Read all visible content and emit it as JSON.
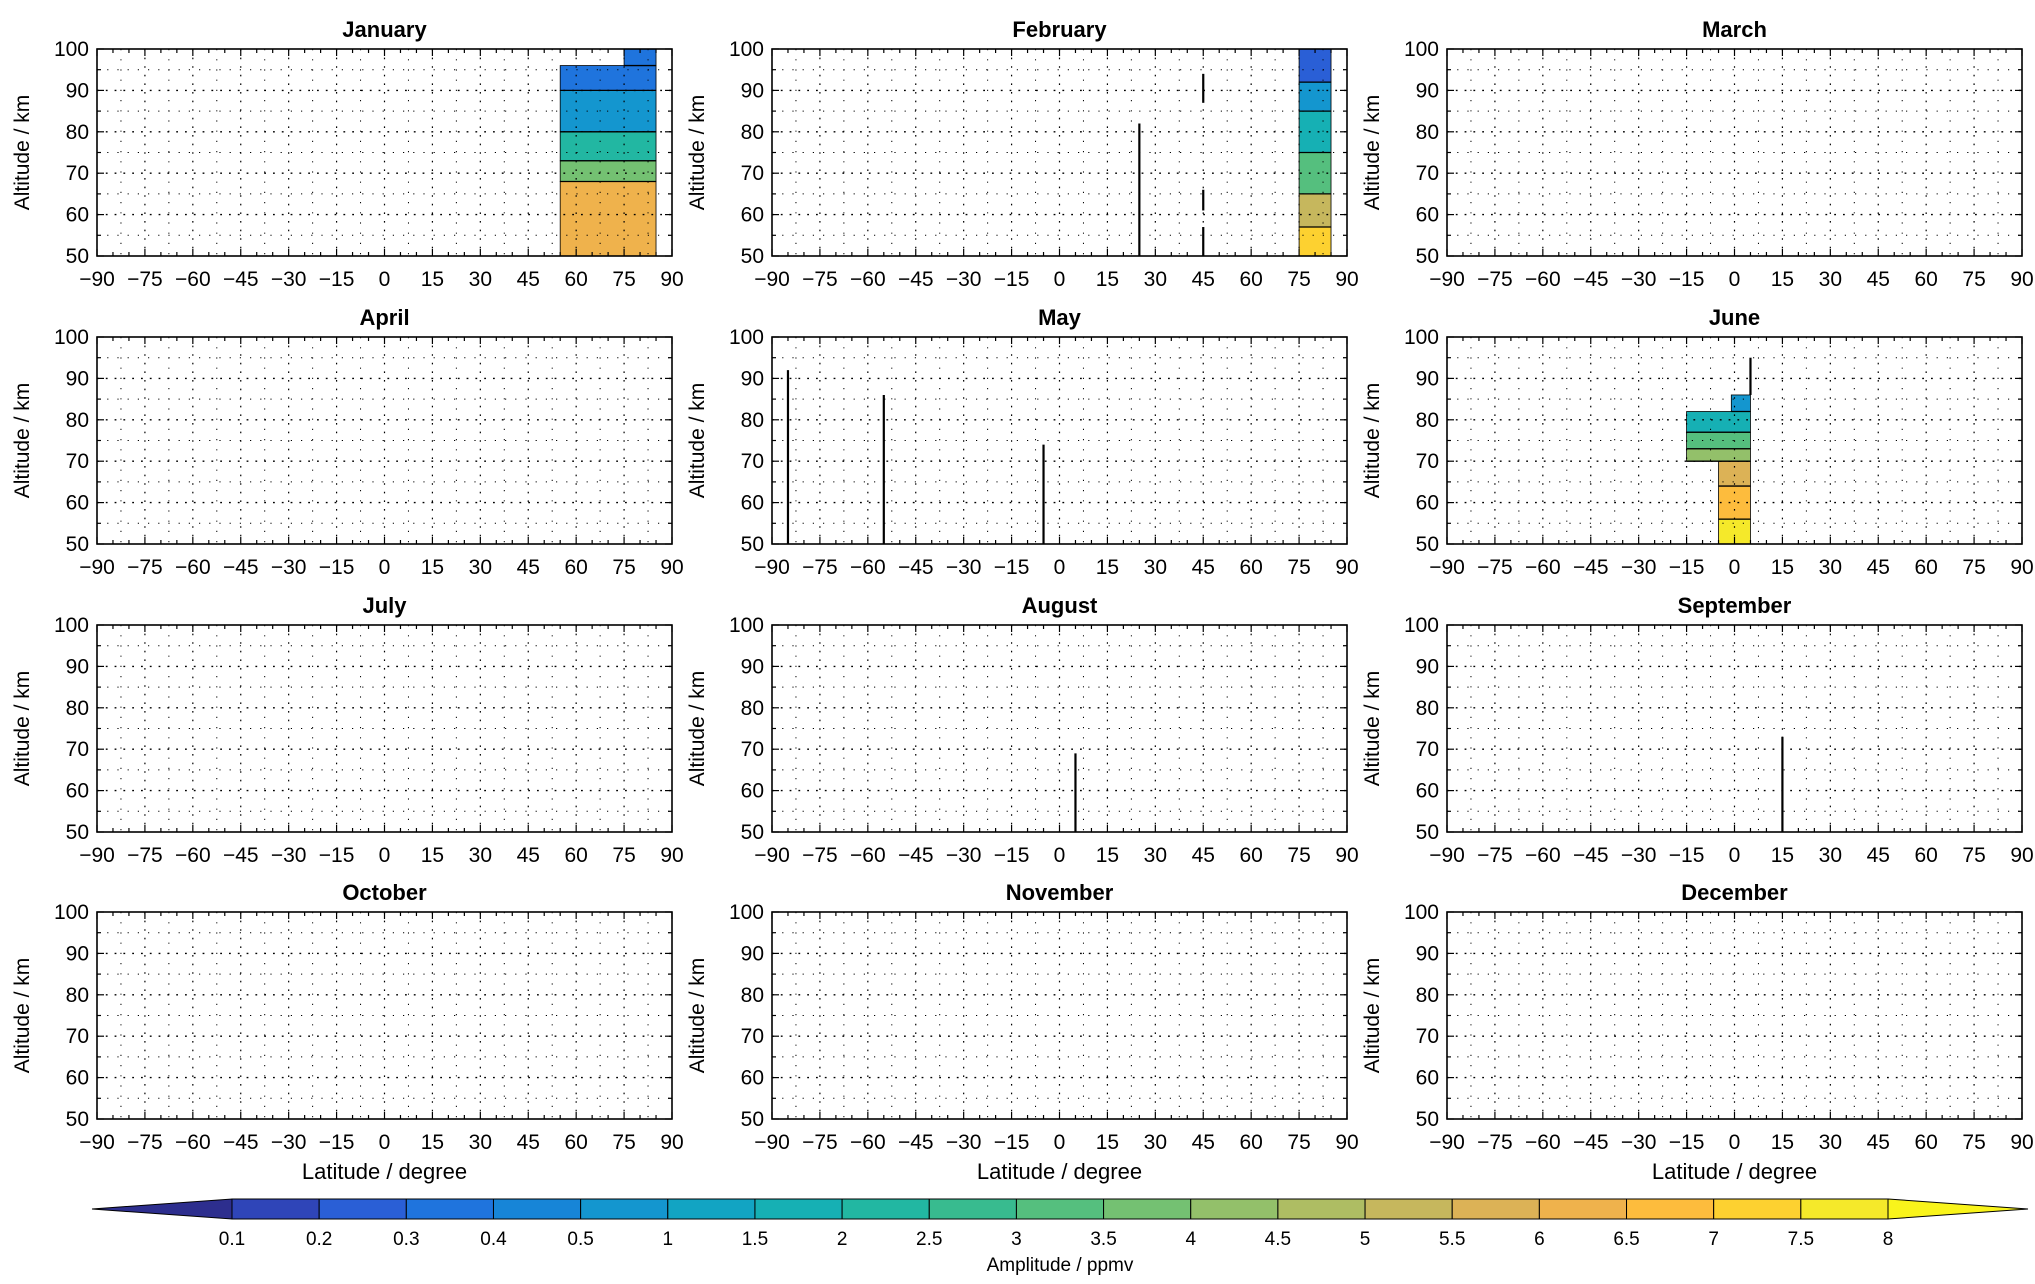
{
  "figure": {
    "colorbar": {
      "label": "Amplitude / ppmv",
      "levels": [
        0.1,
        0.2,
        0.3,
        0.4,
        0.5,
        1,
        1.5,
        2,
        2.5,
        3,
        3.5,
        4,
        4.5,
        5,
        5.5,
        6,
        6.5,
        7,
        7.5,
        8
      ],
      "tick_labels": [
        "0.1",
        "0.2",
        "0.3",
        "0.4",
        "0.5",
        "1",
        "1.5",
        "2",
        "2.5",
        "3",
        "3.5",
        "4",
        "4.5",
        "5",
        "5.5",
        "6",
        "6.5",
        "7",
        "7.5",
        "8"
      ],
      "colors": [
        "#2d2e8e",
        "#2f45b8",
        "#2a5fd6",
        "#1f74dd",
        "#1785d7",
        "#1496cf",
        "#12a4c3",
        "#16b0b4",
        "#22b7a2",
        "#38bb8f",
        "#55bf7e",
        "#74c172",
        "#93c06a",
        "#aebd63",
        "#c6b75d",
        "#dcb256",
        "#efb24c",
        "#fdbc3d",
        "#fdd130",
        "#f5e92a",
        "#f9f41b"
      ]
    }
  },
  "chart_data": [
    {
      "type": "heatmap",
      "title": "January",
      "xlabel": "",
      "ylabel": "Altitude / km",
      "xlim": [
        -90,
        90
      ],
      "ylim": [
        50,
        100
      ],
      "x_ticks": [
        "−90",
        "−75",
        "−60",
        "−45",
        "−30",
        "−15",
        "0",
        "15",
        "30",
        "45",
        "60",
        "75",
        "90"
      ],
      "y_ticks": [
        "50",
        "60",
        "70",
        "80",
        "90",
        "100"
      ],
      "regions": [
        {
          "x": [
            55,
            85
          ],
          "y": [
            50,
            68
          ],
          "value": 6.0
        },
        {
          "x": [
            55,
            85
          ],
          "y": [
            68,
            73
          ],
          "value": 3.5
        },
        {
          "x": [
            55,
            85
          ],
          "y": [
            73,
            80
          ],
          "value": 2.0
        },
        {
          "x": [
            55,
            85
          ],
          "y": [
            80,
            90
          ],
          "value": 0.8
        },
        {
          "x": [
            55,
            85
          ],
          "y": [
            90,
            96
          ],
          "value": 0.35
        },
        {
          "x": [
            75,
            85
          ],
          "y": [
            96,
            100
          ],
          "value": 0.3
        }
      ],
      "spikes": []
    },
    {
      "type": "heatmap",
      "title": "February",
      "xlabel": "",
      "ylabel": "Altitude / km",
      "xlim": [
        -90,
        90
      ],
      "ylim": [
        50,
        100
      ],
      "x_ticks": [
        "−90",
        "−75",
        "−60",
        "−45",
        "−30",
        "−15",
        "0",
        "15",
        "30",
        "45",
        "60",
        "75",
        "90"
      ],
      "y_ticks": [
        "50",
        "60",
        "70",
        "80",
        "90",
        "100"
      ],
      "regions": [
        {
          "x": [
            75,
            85
          ],
          "y": [
            50,
            57
          ],
          "value": 7.0
        },
        {
          "x": [
            75,
            85
          ],
          "y": [
            57,
            65
          ],
          "value": 5.0
        },
        {
          "x": [
            75,
            85
          ],
          "y": [
            65,
            75
          ],
          "value": 3.0
        },
        {
          "x": [
            75,
            85
          ],
          "y": [
            75,
            85
          ],
          "value": 1.5
        },
        {
          "x": [
            75,
            85
          ],
          "y": [
            85,
            92
          ],
          "value": 0.5
        },
        {
          "x": [
            75,
            85
          ],
          "y": [
            92,
            100
          ],
          "value": 0.2
        }
      ],
      "spikes": [
        {
          "x": 25,
          "y": [
            50,
            82
          ]
        },
        {
          "x": 45,
          "y": [
            87,
            94
          ]
        },
        {
          "x": 45,
          "y": [
            61,
            66
          ]
        },
        {
          "x": 45,
          "y": [
            50,
            57
          ]
        }
      ]
    },
    {
      "type": "heatmap",
      "title": "March",
      "xlabel": "",
      "ylabel": "Altitude / km",
      "xlim": [
        -90,
        90
      ],
      "ylim": [
        50,
        100
      ],
      "x_ticks": [
        "−90",
        "−75",
        "−60",
        "−45",
        "−30",
        "−15",
        "0",
        "15",
        "30",
        "45",
        "60",
        "75",
        "90"
      ],
      "y_ticks": [
        "50",
        "60",
        "70",
        "80",
        "90",
        "100"
      ],
      "regions": [],
      "spikes": []
    },
    {
      "type": "heatmap",
      "title": "April",
      "xlabel": "",
      "ylabel": "Altitude / km",
      "xlim": [
        -90,
        90
      ],
      "ylim": [
        50,
        100
      ],
      "x_ticks": [
        "−90",
        "−75",
        "−60",
        "−45",
        "−30",
        "−15",
        "0",
        "15",
        "30",
        "45",
        "60",
        "75",
        "90"
      ],
      "y_ticks": [
        "50",
        "60",
        "70",
        "80",
        "90",
        "100"
      ],
      "regions": [],
      "spikes": []
    },
    {
      "type": "heatmap",
      "title": "May",
      "xlabel": "",
      "ylabel": "Altitude / km",
      "xlim": [
        -90,
        90
      ],
      "ylim": [
        50,
        100
      ],
      "x_ticks": [
        "−90",
        "−75",
        "−60",
        "−45",
        "−30",
        "−15",
        "0",
        "15",
        "30",
        "45",
        "60",
        "75",
        "90"
      ],
      "y_ticks": [
        "50",
        "60",
        "70",
        "80",
        "90",
        "100"
      ],
      "regions": [],
      "spikes": [
        {
          "x": -85,
          "y": [
            50,
            92
          ]
        },
        {
          "x": -55,
          "y": [
            50,
            86
          ]
        },
        {
          "x": -5,
          "y": [
            50,
            74
          ]
        }
      ]
    },
    {
      "type": "heatmap",
      "title": "June",
      "xlabel": "",
      "ylabel": "Altitude / km",
      "xlim": [
        -90,
        90
      ],
      "ylim": [
        50,
        100
      ],
      "x_ticks": [
        "−90",
        "−75",
        "−60",
        "−45",
        "−30",
        "−15",
        "0",
        "15",
        "30",
        "45",
        "60",
        "75",
        "90"
      ],
      "y_ticks": [
        "50",
        "60",
        "70",
        "80",
        "90",
        "100"
      ],
      "regions": [
        {
          "x": [
            -5,
            5
          ],
          "y": [
            50,
            56
          ],
          "value": 7.5
        },
        {
          "x": [
            -5,
            5
          ],
          "y": [
            56,
            64
          ],
          "value": 6.5
        },
        {
          "x": [
            -5,
            5
          ],
          "y": [
            64,
            70
          ],
          "value": 5.5
        },
        {
          "x": [
            -15,
            5
          ],
          "y": [
            70,
            73
          ],
          "value": 4.0
        },
        {
          "x": [
            -15,
            5
          ],
          "y": [
            73,
            77
          ],
          "value": 3.0
        },
        {
          "x": [
            -15,
            5
          ],
          "y": [
            77,
            82
          ],
          "value": 1.5
        },
        {
          "x": [
            -1,
            5
          ],
          "y": [
            82,
            86
          ],
          "value": 0.5
        }
      ],
      "spikes": [
        {
          "x": 5,
          "y": [
            86,
            95
          ]
        }
      ]
    },
    {
      "type": "heatmap",
      "title": "July",
      "xlabel": "",
      "ylabel": "Altitude / km",
      "xlim": [
        -90,
        90
      ],
      "ylim": [
        50,
        100
      ],
      "x_ticks": [
        "−90",
        "−75",
        "−60",
        "−45",
        "−30",
        "−15",
        "0",
        "15",
        "30",
        "45",
        "60",
        "75",
        "90"
      ],
      "y_ticks": [
        "50",
        "60",
        "70",
        "80",
        "90",
        "100"
      ],
      "regions": [],
      "spikes": []
    },
    {
      "type": "heatmap",
      "title": "August",
      "xlabel": "",
      "ylabel": "Altitude / km",
      "xlim": [
        -90,
        90
      ],
      "ylim": [
        50,
        100
      ],
      "x_ticks": [
        "−90",
        "−75",
        "−60",
        "−45",
        "−30",
        "−15",
        "0",
        "15",
        "30",
        "45",
        "60",
        "75",
        "90"
      ],
      "y_ticks": [
        "50",
        "60",
        "70",
        "80",
        "90",
        "100"
      ],
      "regions": [],
      "spikes": [
        {
          "x": 5,
          "y": [
            50,
            69
          ]
        }
      ]
    },
    {
      "type": "heatmap",
      "title": "September",
      "xlabel": "",
      "ylabel": "Altitude / km",
      "xlim": [
        -90,
        90
      ],
      "ylim": [
        50,
        100
      ],
      "x_ticks": [
        "−90",
        "−75",
        "−60",
        "−45",
        "−30",
        "−15",
        "0",
        "15",
        "30",
        "45",
        "60",
        "75",
        "90"
      ],
      "y_ticks": [
        "50",
        "60",
        "70",
        "80",
        "90",
        "100"
      ],
      "regions": [],
      "spikes": [
        {
          "x": 15,
          "y": [
            50,
            73
          ]
        }
      ]
    },
    {
      "type": "heatmap",
      "title": "October",
      "xlabel": "Latitude / degree",
      "ylabel": "Altitude / km",
      "xlim": [
        -90,
        90
      ],
      "ylim": [
        50,
        100
      ],
      "x_ticks": [
        "−90",
        "−75",
        "−60",
        "−45",
        "−30",
        "−15",
        "0",
        "15",
        "30",
        "45",
        "60",
        "75",
        "90"
      ],
      "y_ticks": [
        "50",
        "60",
        "70",
        "80",
        "90",
        "100"
      ],
      "regions": [],
      "spikes": []
    },
    {
      "type": "heatmap",
      "title": "November",
      "xlabel": "Latitude / degree",
      "ylabel": "Altitude / km",
      "xlim": [
        -90,
        90
      ],
      "ylim": [
        50,
        100
      ],
      "x_ticks": [
        "−90",
        "−75",
        "−60",
        "−45",
        "−30",
        "−15",
        "0",
        "15",
        "30",
        "45",
        "60",
        "75",
        "90"
      ],
      "y_ticks": [
        "50",
        "60",
        "70",
        "80",
        "90",
        "100"
      ],
      "regions": [],
      "spikes": []
    },
    {
      "type": "heatmap",
      "title": "December",
      "xlabel": "Latitude / degree",
      "ylabel": "Altitude / km",
      "xlim": [
        -90,
        90
      ],
      "ylim": [
        50,
        100
      ],
      "x_ticks": [
        "−90",
        "−75",
        "−60",
        "−45",
        "−30",
        "−15",
        "0",
        "15",
        "30",
        "45",
        "60",
        "75",
        "90"
      ],
      "y_ticks": [
        "50",
        "60",
        "70",
        "80",
        "90",
        "100"
      ],
      "regions": [],
      "spikes": []
    }
  ]
}
